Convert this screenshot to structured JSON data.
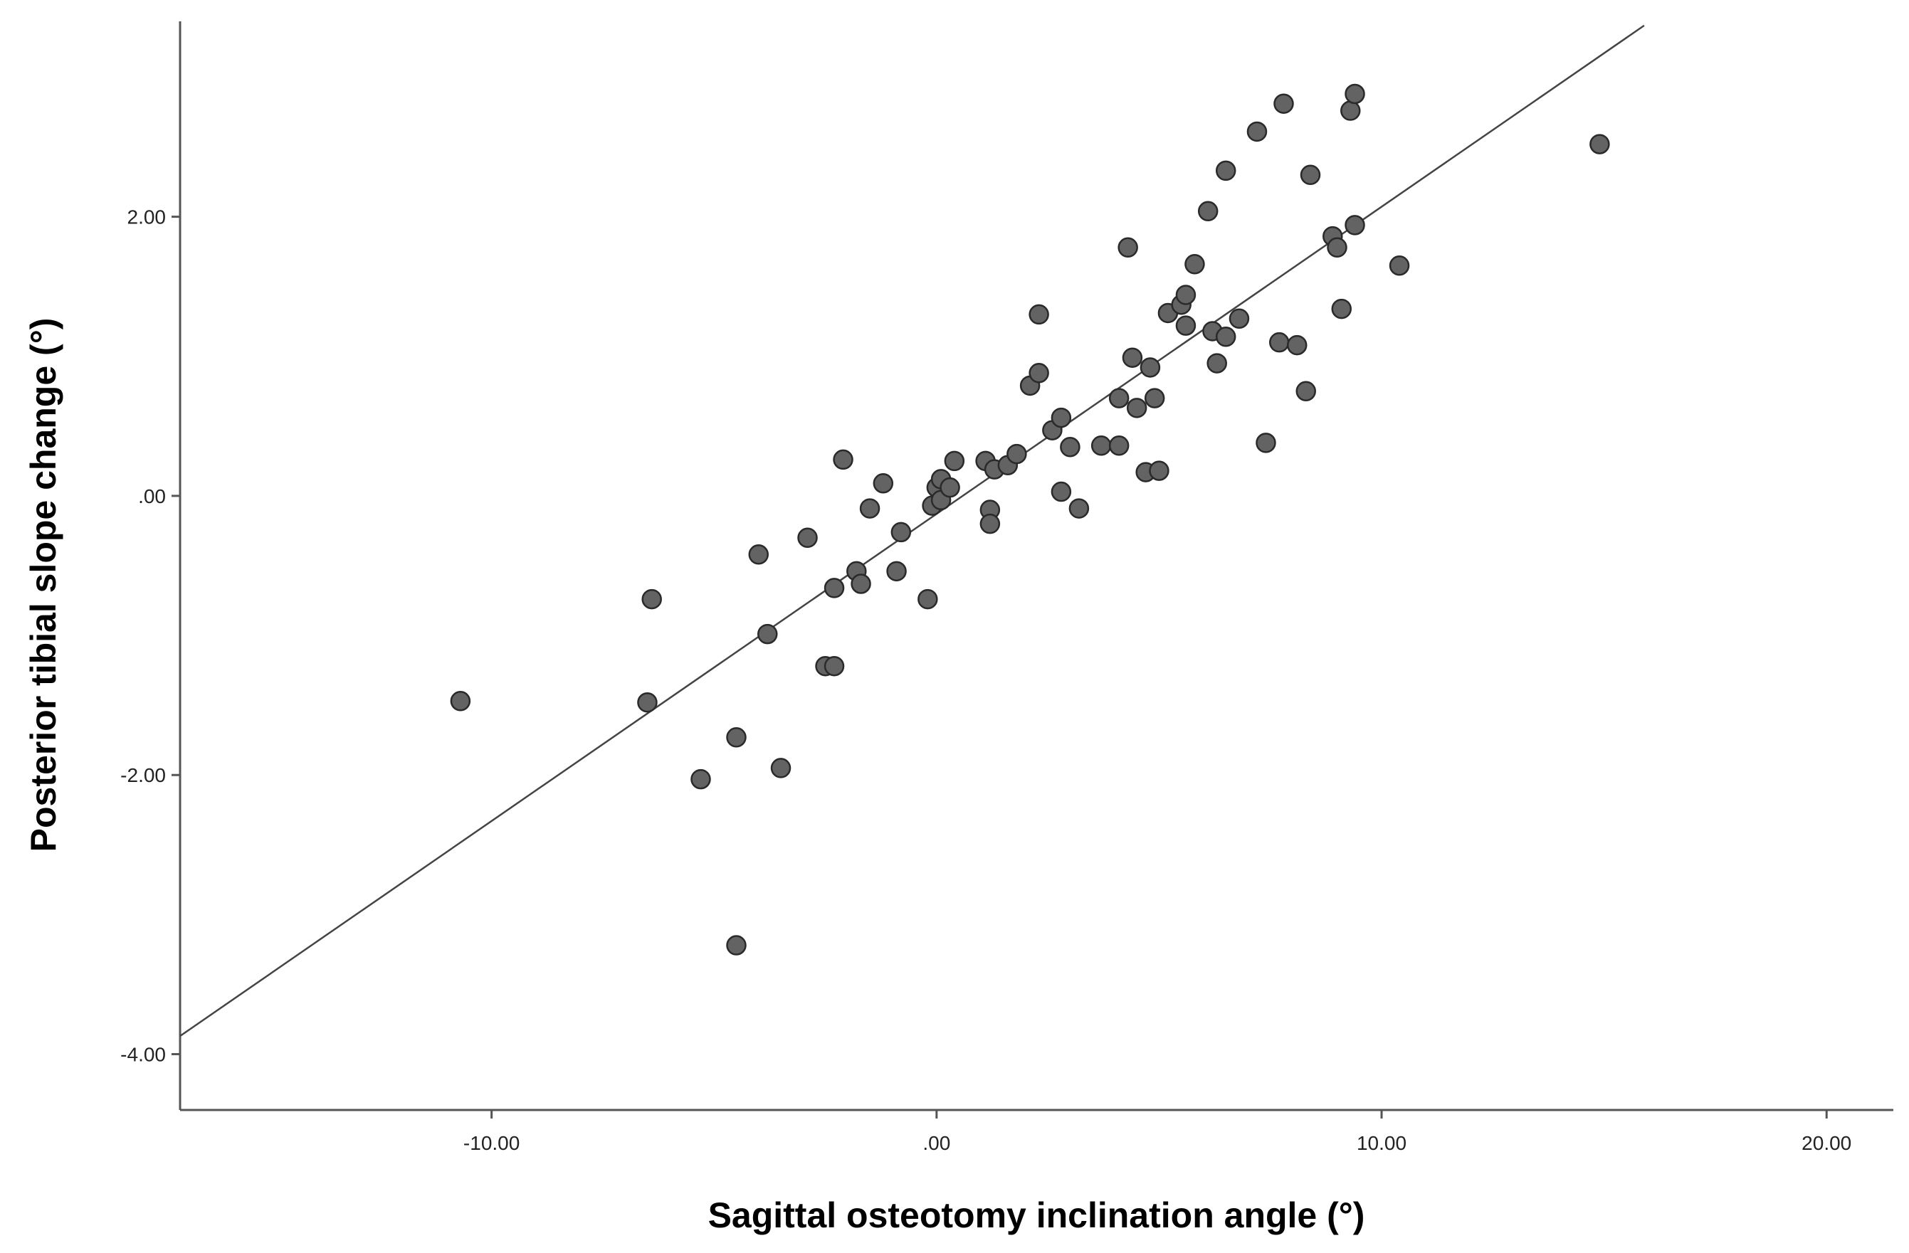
{
  "chart_data": {
    "type": "scatter",
    "xlabel": "Sagittal osteotomy inclination angle (°)",
    "ylabel": "Posterior tibial slope change (°)",
    "xlim": [
      -17,
      21.5
    ],
    "ylim": [
      -4.4,
      3.4
    ],
    "x_ticks": [
      -10,
      0,
      10,
      20
    ],
    "x_tick_labels": [
      "-10.00",
      ".00",
      "10.00",
      "20.00"
    ],
    "y_ticks": [
      -4,
      -2,
      0,
      2
    ],
    "y_tick_labels": [
      "-4.00",
      "-2.00",
      ".00",
      "2.00"
    ],
    "grid": false,
    "fit_line": {
      "x": [
        -17,
        15.9
      ],
      "y": [
        -3.87,
        3.37
      ]
    },
    "points": [
      {
        "x": -10.7,
        "y": -1.47
      },
      {
        "x": -6.4,
        "y": -0.74
      },
      {
        "x": -6.5,
        "y": -1.48
      },
      {
        "x": -5.3,
        "y": -2.03
      },
      {
        "x": -4.5,
        "y": -1.73
      },
      {
        "x": -4.5,
        "y": -3.22
      },
      {
        "x": -4.0,
        "y": -0.42
      },
      {
        "x": -3.8,
        "y": -0.99
      },
      {
        "x": -3.5,
        "y": -1.95
      },
      {
        "x": -2.9,
        "y": -0.3
      },
      {
        "x": -2.5,
        "y": -1.22
      },
      {
        "x": -2.3,
        "y": -1.22
      },
      {
        "x": -2.3,
        "y": -0.66
      },
      {
        "x": -2.1,
        "y": 0.26
      },
      {
        "x": -1.8,
        "y": -0.54
      },
      {
        "x": -1.7,
        "y": -0.63
      },
      {
        "x": -1.5,
        "y": -0.09
      },
      {
        "x": -1.2,
        "y": 0.09
      },
      {
        "x": -0.9,
        "y": -0.54
      },
      {
        "x": -0.8,
        "y": -0.26
      },
      {
        "x": -0.2,
        "y": -0.74
      },
      {
        "x": -0.1,
        "y": -0.07
      },
      {
        "x": 0.0,
        "y": 0.06
      },
      {
        "x": 0.1,
        "y": -0.03
      },
      {
        "x": 0.1,
        "y": 0.12
      },
      {
        "x": 0.3,
        "y": 0.06
      },
      {
        "x": 0.4,
        "y": 0.25
      },
      {
        "x": 1.1,
        "y": 0.25
      },
      {
        "x": 1.2,
        "y": -0.1
      },
      {
        "x": 1.2,
        "y": -0.2
      },
      {
        "x": 1.3,
        "y": 0.19
      },
      {
        "x": 1.6,
        "y": 0.22
      },
      {
        "x": 1.8,
        "y": 0.3
      },
      {
        "x": 2.1,
        "y": 0.79
      },
      {
        "x": 2.3,
        "y": 1.3
      },
      {
        "x": 2.3,
        "y": 0.88
      },
      {
        "x": 2.6,
        "y": 0.47
      },
      {
        "x": 2.8,
        "y": 0.56
      },
      {
        "x": 2.8,
        "y": 0.03
      },
      {
        "x": 3.0,
        "y": 0.35
      },
      {
        "x": 3.2,
        "y": -0.09
      },
      {
        "x": 3.7,
        "y": 0.36
      },
      {
        "x": 4.1,
        "y": 0.7
      },
      {
        "x": 4.1,
        "y": 0.36
      },
      {
        "x": 4.3,
        "y": 1.78
      },
      {
        "x": 4.4,
        "y": 0.99
      },
      {
        "x": 4.5,
        "y": 0.63
      },
      {
        "x": 4.7,
        "y": 0.17
      },
      {
        "x": 4.8,
        "y": 0.92
      },
      {
        "x": 4.9,
        "y": 0.7
      },
      {
        "x": 5.0,
        "y": 0.18
      },
      {
        "x": 5.2,
        "y": 1.31
      },
      {
        "x": 5.5,
        "y": 1.37
      },
      {
        "x": 5.6,
        "y": 1.44
      },
      {
        "x": 5.6,
        "y": 1.22
      },
      {
        "x": 5.8,
        "y": 1.66
      },
      {
        "x": 6.1,
        "y": 2.04
      },
      {
        "x": 6.2,
        "y": 1.18
      },
      {
        "x": 6.3,
        "y": 0.95
      },
      {
        "x": 6.5,
        "y": 2.33
      },
      {
        "x": 6.5,
        "y": 1.14
      },
      {
        "x": 6.8,
        "y": 1.27
      },
      {
        "x": 7.2,
        "y": 2.61
      },
      {
        "x": 7.4,
        "y": 0.38
      },
      {
        "x": 7.7,
        "y": 1.1
      },
      {
        "x": 7.8,
        "y": 2.81
      },
      {
        "x": 8.1,
        "y": 1.08
      },
      {
        "x": 8.3,
        "y": 0.75
      },
      {
        "x": 8.4,
        "y": 2.3
      },
      {
        "x": 8.9,
        "y": 1.86
      },
      {
        "x": 9.0,
        "y": 1.78
      },
      {
        "x": 9.1,
        "y": 1.34
      },
      {
        "x": 9.3,
        "y": 2.76
      },
      {
        "x": 9.4,
        "y": 2.88
      },
      {
        "x": 9.4,
        "y": 1.94
      },
      {
        "x": 10.4,
        "y": 1.65
      },
      {
        "x": 14.9,
        "y": 2.52
      }
    ]
  }
}
